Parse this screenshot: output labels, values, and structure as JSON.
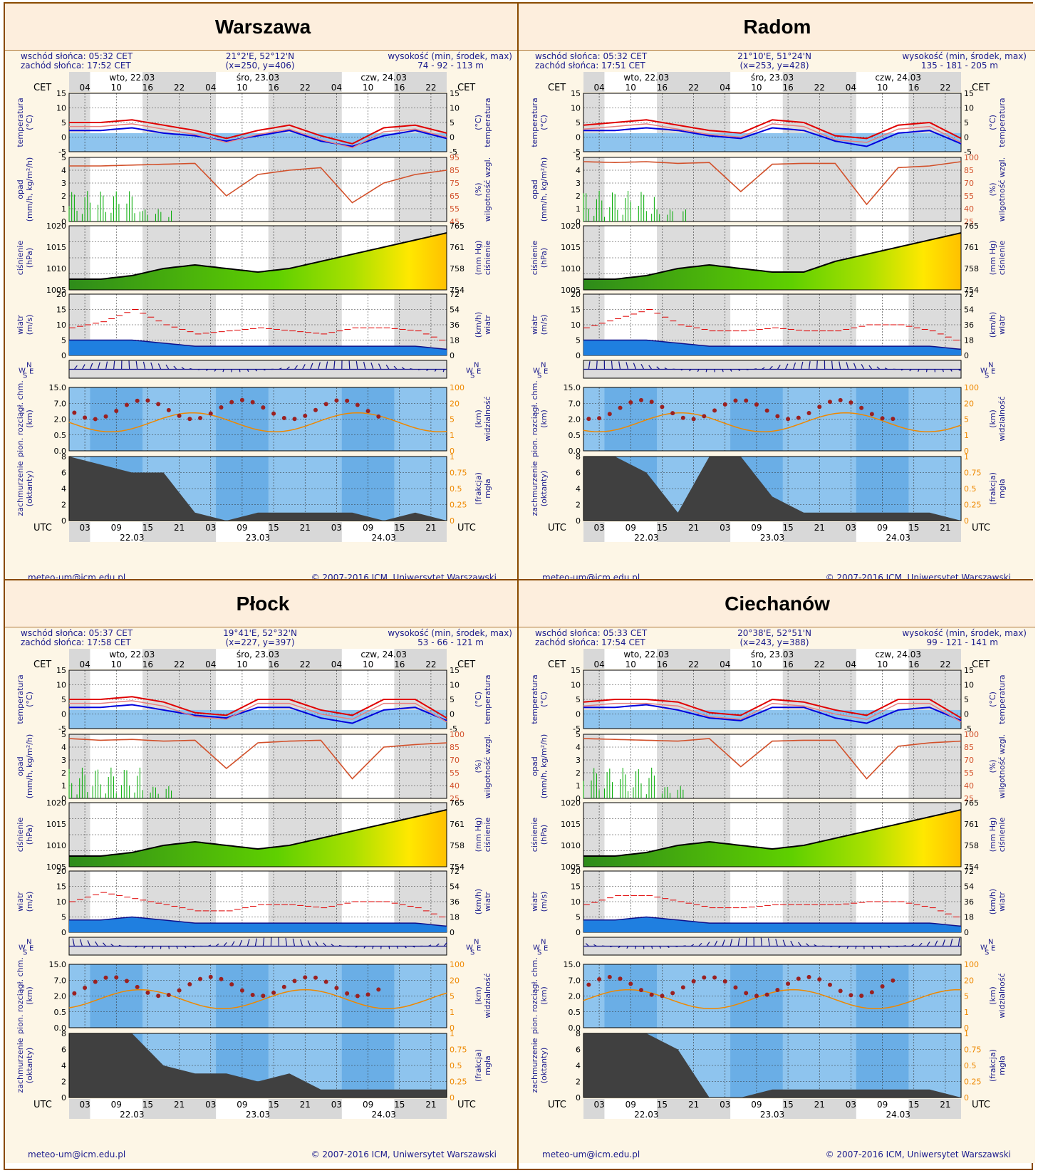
{
  "labels": {
    "sunrise_prefix": "wschód słońca:",
    "sunset_prefix": "zachód słońca:",
    "elevation_title": "wysokość (min, środek, max)",
    "cet": "CET",
    "utc": "UTC",
    "day_labels": [
      "wto, 22.03",
      "śro, 23.03",
      "czw, 24.03"
    ],
    "utc_dates": [
      "22.03",
      "23.03",
      "24.03"
    ],
    "cet_ticks": [
      "04",
      "10",
      "16",
      "22",
      "04",
      "10",
      "16",
      "22",
      "04",
      "10",
      "16",
      "22"
    ],
    "utc_ticks": [
      "03",
      "09",
      "15",
      "21",
      "03",
      "09",
      "15",
      "21",
      "03",
      "09",
      "15",
      "21"
    ],
    "temp_left": [
      "temperatura",
      "(°C)"
    ],
    "temp_right": [
      "(°C)",
      "temperatura"
    ],
    "precip_left": [
      "opad",
      "(mm/h, kg/m²/h)"
    ],
    "precip_right": [
      "(%)",
      "wilgotność wzgl."
    ],
    "press_left": [
      "ciśnienie",
      "(hPa)"
    ],
    "press_right": [
      "(mm Hg)",
      "ciśnienie"
    ],
    "wind_left": [
      "wiatr",
      "(m/s)"
    ],
    "wind_right": [
      "(km/h)",
      "wiatr"
    ],
    "vis_left": [
      "pion. rozciągł. chm.",
      "(km)"
    ],
    "vis_right": [
      "(km)",
      "widzialność"
    ],
    "cloud_left": [
      "zachmurzenie",
      "(oktanty)"
    ],
    "cloud_right": [
      "(frakcja)",
      "mgła"
    ],
    "compass": {
      "n": "N",
      "w": "W",
      "s": "S",
      "e": "E"
    },
    "footer_email": "meteo-um@icm.edu.pl",
    "footer_copyright": "© 2007-2016 ICM, Uniwersytet Warszawski"
  },
  "colors": {
    "frame": "#8a4a00",
    "temp_red": "#e00000",
    "temp_blue": "#0000dd",
    "humidity": "#d2502a",
    "cold_area": "#8ec4ee",
    "vis_orange": "#ee8800",
    "fog": "#ffaa00"
  },
  "axes": {
    "temp_ticks": [
      "15",
      "10",
      "5",
      "0",
      "-5"
    ],
    "precip_ticks": [
      "5",
      "4",
      "3",
      "2",
      "1",
      "0"
    ],
    "pressure_ticks": [
      "1020",
      "1015",
      "1010",
      "1005"
    ],
    "pressure_mmhg": [
      "765",
      "761",
      "758",
      "754"
    ],
    "wind_ticks": [
      "20",
      "15",
      "10",
      "5",
      "0"
    ],
    "wind_kmh": [
      "72",
      "54",
      "36",
      "18",
      "0"
    ],
    "vis_left_ticks": [
      "15.0",
      "7.0",
      "2.0",
      "0.5",
      "0.0"
    ],
    "vis_right_ticks": [
      "100",
      "20",
      "5",
      "1",
      "0"
    ],
    "cloud_ticks": [
      "8",
      "6",
      "4",
      "2",
      "0"
    ],
    "fog_ticks": [
      "1",
      "0.75",
      "0.5",
      "0.25",
      "0"
    ]
  },
  "stations": [
    {
      "name": "Warszawa",
      "sunrise": "05:32 CET",
      "sunset": "17:52 CET",
      "coords": "21°2'E, 52°12'N",
      "grid": "(x=250, y=406)",
      "elevation": "74 - 92 - 113 m",
      "humidity_ticks": [
        "95",
        "85",
        "75",
        "65",
        "55",
        "45"
      ],
      "chart_data": {
        "type": "line",
        "x_hours": [
          0,
          6,
          12,
          18,
          24,
          30,
          36,
          42,
          48,
          54,
          60,
          66,
          72
        ],
        "temperature": [
          4,
          4,
          5,
          3,
          1,
          -2,
          1,
          3,
          -1,
          -4,
          2,
          3,
          0
        ],
        "dewpoint": [
          1,
          1,
          2,
          0,
          -1,
          -3,
          -1,
          1,
          -3,
          -5,
          -1,
          1,
          -2
        ],
        "humidity": [
          90,
          90,
          91,
          92,
          93,
          55,
          80,
          85,
          88,
          47,
          70,
          80,
          85
        ],
        "pressure": [
          1005,
          1005,
          1006,
          1008,
          1009,
          1008,
          1007,
          1008,
          1010,
          1012,
          1014,
          1016,
          1018
        ],
        "wind": [
          5,
          5,
          5,
          4,
          3,
          3,
          3,
          3,
          3,
          3,
          3,
          3,
          2
        ],
        "gusts": [
          9,
          11,
          15,
          10,
          7,
          8,
          9,
          8,
          7,
          9,
          9,
          8,
          4
        ],
        "cloud_cover": [
          8,
          7,
          6,
          6,
          1,
          0,
          1,
          1,
          1,
          1,
          0,
          1,
          0
        ]
      }
    },
    {
      "name": "Radom",
      "sunrise": "05:32 CET",
      "sunset": "17:51 CET",
      "coords": "21°10'E, 51°24'N",
      "grid": "(x=253, y=428)",
      "elevation": "135 - 181 - 205 m",
      "humidity_ticks": [
        "100",
        "85",
        "70",
        "55",
        "40",
        "25"
      ],
      "chart_data": {
        "type": "line",
        "x_hours": [
          0,
          6,
          12,
          18,
          24,
          30,
          36,
          42,
          48,
          54,
          60,
          66,
          72
        ],
        "temperature": [
          3,
          4,
          5,
          3,
          1,
          0,
          5,
          4,
          -1,
          -2,
          3,
          4,
          -2
        ],
        "dewpoint": [
          1,
          1,
          2,
          1,
          -1,
          -2,
          2,
          1,
          -3,
          -5,
          0,
          1,
          -4
        ],
        "humidity": [
          95,
          94,
          95,
          93,
          94,
          60,
          92,
          93,
          93,
          45,
          88,
          90,
          95
        ],
        "pressure": [
          1005,
          1005,
          1006,
          1008,
          1009,
          1008,
          1007,
          1007,
          1010,
          1012,
          1014,
          1016,
          1018
        ],
        "wind": [
          5,
          5,
          5,
          4,
          3,
          3,
          3,
          3,
          3,
          3,
          3,
          3,
          2
        ],
        "gusts": [
          9,
          12,
          15,
          10,
          8,
          8,
          9,
          8,
          8,
          10,
          10,
          8,
          4
        ],
        "cloud_cover": [
          8,
          8,
          6,
          1,
          8,
          8,
          3,
          1,
          1,
          1,
          1,
          1,
          0
        ]
      }
    },
    {
      "name": "Płock",
      "sunrise": "05:37 CET",
      "sunset": "17:58 CET",
      "coords": "19°41'E, 52°32'N",
      "grid": "(x=227, y=397)",
      "elevation": "53 - 66 - 121 m",
      "humidity_ticks": [
        "100",
        "85",
        "70",
        "55",
        "40",
        "25"
      ],
      "chart_data": {
        "type": "line",
        "x_hours": [
          0,
          6,
          12,
          18,
          24,
          30,
          36,
          42,
          48,
          54,
          60,
          66,
          72
        ],
        "temperature": [
          4,
          4,
          5,
          3,
          -1,
          -2,
          4,
          4,
          0,
          -2,
          4,
          4,
          -3
        ],
        "dewpoint": [
          1,
          1,
          2,
          0,
          -2,
          -3,
          1,
          1,
          -3,
          -5,
          0,
          1,
          -4
        ],
        "humidity": [
          95,
          93,
          94,
          92,
          93,
          60,
          90,
          92,
          93,
          48,
          85,
          88,
          90
        ],
        "pressure": [
          1005,
          1005,
          1006,
          1008,
          1009,
          1008,
          1007,
          1008,
          1010,
          1012,
          1014,
          1016,
          1018
        ],
        "wind": [
          4,
          4,
          5,
          4,
          3,
          3,
          3,
          3,
          3,
          3,
          3,
          3,
          2
        ],
        "gusts": [
          10,
          13,
          11,
          9,
          7,
          7,
          9,
          9,
          8,
          10,
          10,
          8,
          4
        ],
        "cloud_cover": [
          8,
          8,
          8,
          4,
          3,
          3,
          2,
          3,
          1,
          1,
          1,
          1,
          1
        ]
      }
    },
    {
      "name": "Ciechanów",
      "sunrise": "05:33 CET",
      "sunset": "17:54 CET",
      "coords": "20°38'E, 52°51'N",
      "grid": "(x=243, y=388)",
      "elevation": "99 - 121 - 141 m",
      "humidity_ticks": [
        "100",
        "85",
        "70",
        "55",
        "40",
        "25"
      ],
      "chart_data": {
        "type": "line",
        "x_hours": [
          0,
          6,
          12,
          18,
          24,
          30,
          36,
          42,
          48,
          54,
          60,
          66,
          72
        ],
        "temperature": [
          3,
          4,
          4,
          3,
          -1,
          -2,
          4,
          3,
          0,
          -2,
          4,
          4,
          -3
        ],
        "dewpoint": [
          1,
          1,
          2,
          0,
          -3,
          -4,
          1,
          1,
          -3,
          -5,
          0,
          1,
          -4
        ],
        "humidity": [
          95,
          94,
          93,
          92,
          95,
          62,
          92,
          93,
          93,
          48,
          86,
          90,
          92
        ],
        "pressure": [
          1005,
          1005,
          1006,
          1008,
          1009,
          1008,
          1007,
          1008,
          1010,
          1012,
          1014,
          1016,
          1018
        ],
        "wind": [
          4,
          4,
          5,
          4,
          3,
          3,
          3,
          3,
          3,
          3,
          3,
          3,
          2
        ],
        "gusts": [
          9,
          12,
          12,
          10,
          8,
          8,
          9,
          9,
          9,
          10,
          10,
          8,
          4
        ],
        "cloud_cover": [
          8,
          8,
          8,
          6,
          0,
          0,
          1,
          1,
          1,
          1,
          1,
          1,
          0
        ]
      }
    }
  ]
}
